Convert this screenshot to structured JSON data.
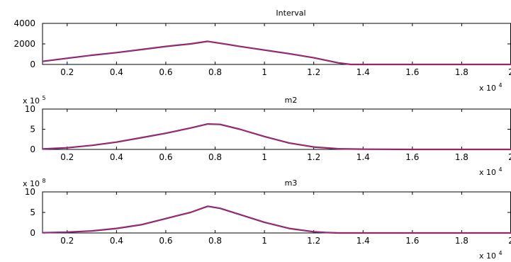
{
  "chart_data": [
    {
      "type": "line",
      "title": "Interval",
      "xlabel": "",
      "ylabel": "",
      "xlim": [
        0.1,
        2.0
      ],
      "ylim": [
        0,
        4000
      ],
      "x_ticks": [
        0.2,
        0.4,
        0.6,
        0.8,
        1,
        1.2,
        1.4,
        1.6,
        1.8,
        2
      ],
      "x_tick_labels": [
        "0.2",
        "0.4",
        "0.6",
        "0.8",
        "1",
        "1.2",
        "1.4",
        "1.6",
        "1.8",
        "2"
      ],
      "y_ticks": [
        0,
        2000,
        4000
      ],
      "y_tick_labels": [
        "0",
        "2000",
        "4000"
      ],
      "y_exponent": "",
      "x_exponent_base": "x 10",
      "x_exponent_power": "4",
      "colors": [
        "#dd2222",
        "#2a2ad8"
      ],
      "series": [
        {
          "x": [
            0.1,
            0.2,
            0.3,
            0.4,
            0.5,
            0.6,
            0.7,
            0.77,
            0.85,
            0.9,
            1.0,
            1.1,
            1.2,
            1.3,
            1.35,
            1.4,
            1.6,
            1.8,
            2.0
          ],
          "values": [
            300,
            600,
            900,
            1150,
            1450,
            1750,
            2000,
            2250,
            1950,
            1750,
            1400,
            1050,
            650,
            150,
            0,
            0,
            0,
            0,
            0
          ]
        }
      ]
    },
    {
      "type": "line",
      "title": "m2",
      "xlabel": "",
      "ylabel": "",
      "xlim": [
        0.1,
        2.0
      ],
      "ylim": [
        0,
        10
      ],
      "x_ticks": [
        0.2,
        0.4,
        0.6,
        0.8,
        1,
        1.2,
        1.4,
        1.6,
        1.8,
        2
      ],
      "x_tick_labels": [
        "0.2",
        "0.4",
        "0.6",
        "0.8",
        "1",
        "1.2",
        "1.4",
        "1.6",
        "1.8",
        "2"
      ],
      "y_ticks": [
        0,
        5,
        10
      ],
      "y_tick_labels": [
        "0",
        "5",
        "10"
      ],
      "y_exponent_base": "x 10",
      "y_exponent_power": "5",
      "x_exponent_base": "x 10",
      "x_exponent_power": "4",
      "colors": [
        "#dd2222",
        "#2a2ad8"
      ],
      "series": [
        {
          "x": [
            0.1,
            0.2,
            0.3,
            0.4,
            0.5,
            0.6,
            0.7,
            0.77,
            0.82,
            0.9,
            1.0,
            1.1,
            1.2,
            1.3,
            1.4,
            1.6,
            1.8,
            2.0
          ],
          "values": [
            0.1,
            0.4,
            1.0,
            1.8,
            2.9,
            4.0,
            5.3,
            6.3,
            6.2,
            5.0,
            3.2,
            1.6,
            0.6,
            0.15,
            0.05,
            0,
            0,
            0
          ]
        }
      ]
    },
    {
      "type": "line",
      "title": "m3",
      "xlabel": "",
      "ylabel": "",
      "xlim": [
        0.1,
        2.0
      ],
      "ylim": [
        0,
        10
      ],
      "x_ticks": [
        0.2,
        0.4,
        0.6,
        0.8,
        1,
        1.2,
        1.4,
        1.6,
        1.8,
        2
      ],
      "x_tick_labels": [
        "0.2",
        "0.4",
        "0.6",
        "0.8",
        "1",
        "1.2",
        "1.4",
        "1.6",
        "1.8",
        "2"
      ],
      "y_ticks": [
        0,
        5,
        10
      ],
      "y_tick_labels": [
        "0",
        "5",
        "10"
      ],
      "y_exponent_base": "x 10",
      "y_exponent_power": "8",
      "x_exponent_base": "x 10",
      "x_exponent_power": "4",
      "colors": [
        "#dd2222",
        "#2a2ad8"
      ],
      "series": [
        {
          "x": [
            0.1,
            0.2,
            0.3,
            0.4,
            0.5,
            0.6,
            0.7,
            0.77,
            0.82,
            0.9,
            1.0,
            1.1,
            1.2,
            1.25,
            1.3,
            1.4,
            1.6,
            1.8,
            2.0
          ],
          "values": [
            0.05,
            0.2,
            0.5,
            1.1,
            2.0,
            3.5,
            5.0,
            6.5,
            6.0,
            4.5,
            2.6,
            1.1,
            0.3,
            0.1,
            0,
            0,
            0,
            0,
            0
          ]
        }
      ]
    }
  ]
}
